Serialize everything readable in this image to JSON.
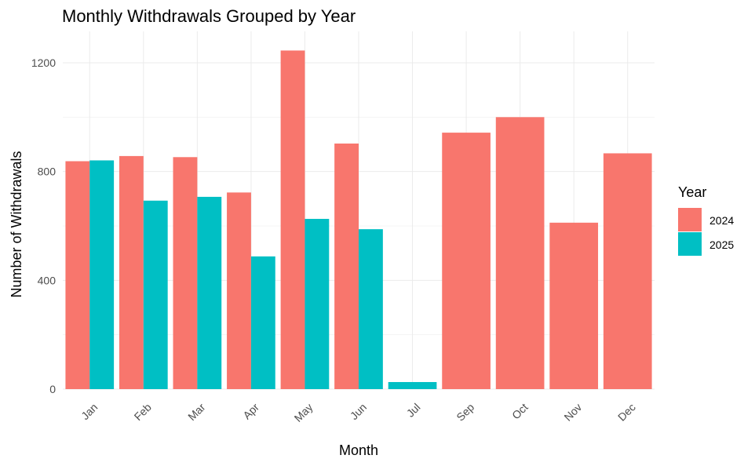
{
  "chart_data": {
    "type": "bar",
    "title": "Monthly Withdrawals Grouped by Year",
    "xlabel": "Month",
    "ylabel": "Number of Withdrawals",
    "categories": [
      "Jan",
      "Feb",
      "Mar",
      "Apr",
      "May",
      "Jun",
      "Jul",
      "Sep",
      "Oct",
      "Nov",
      "Dec"
    ],
    "series": [
      {
        "name": "2024",
        "color": "#F8766D",
        "values": [
          838,
          857,
          853,
          723,
          1245,
          903,
          null,
          943,
          1000,
          612,
          867
        ]
      },
      {
        "name": "2025",
        "color": "#00BFC4",
        "values": [
          841,
          693,
          707,
          488,
          626,
          588,
          26,
          null,
          null,
          null,
          null
        ]
      }
    ],
    "ylim": [
      0,
      1300
    ],
    "yticks": [
      0,
      400,
      800,
      1200
    ],
    "grid": true,
    "legend": {
      "title": "Year",
      "position": "right",
      "entries": [
        "2024",
        "2025"
      ]
    }
  }
}
